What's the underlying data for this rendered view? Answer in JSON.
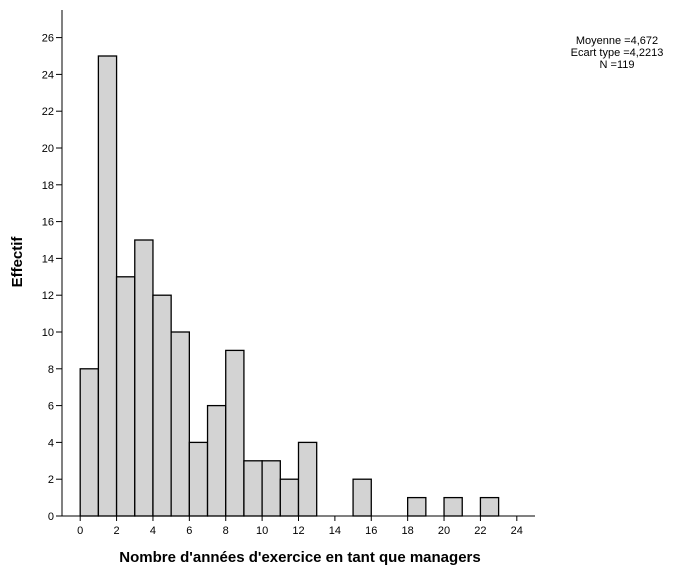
{
  "chart_data": {
    "type": "bar",
    "bin_width": 1,
    "x": [
      0.5,
      1.5,
      2.5,
      3.5,
      4.5,
      5.5,
      6.5,
      7.5,
      8.5,
      9.5,
      10.5,
      11.5,
      12.5,
      13.5,
      14.5,
      15.5,
      16.5,
      17.5,
      18.5,
      19.5,
      20.5,
      21.5,
      22.5
    ],
    "values": [
      8,
      25,
      13,
      15,
      12,
      10,
      4,
      6,
      9,
      3,
      3,
      2,
      4,
      0,
      0,
      2,
      0,
      0,
      1,
      0,
      1,
      0,
      1
    ],
    "xlabel": "Nombre d'années d'exercice en tant que managers",
    "ylabel": "Effectif",
    "xlim": [
      -1,
      25
    ],
    "ylim": [
      0,
      27.5
    ],
    "xticks": [
      "0",
      "2",
      "4",
      "6",
      "8",
      "10",
      "12",
      "14",
      "16",
      "18",
      "20",
      "22",
      "24"
    ],
    "yticks": [
      "0",
      "2",
      "4",
      "6",
      "8",
      "10",
      "12",
      "14",
      "16",
      "18",
      "20",
      "22",
      "24",
      "26"
    ],
    "stats": [
      "Moyenne =4,672",
      "Ecart type =4,2213",
      "N =119"
    ],
    "grid": false,
    "bar_fill": "#d3d3d3",
    "bar_stroke": "#000000"
  }
}
